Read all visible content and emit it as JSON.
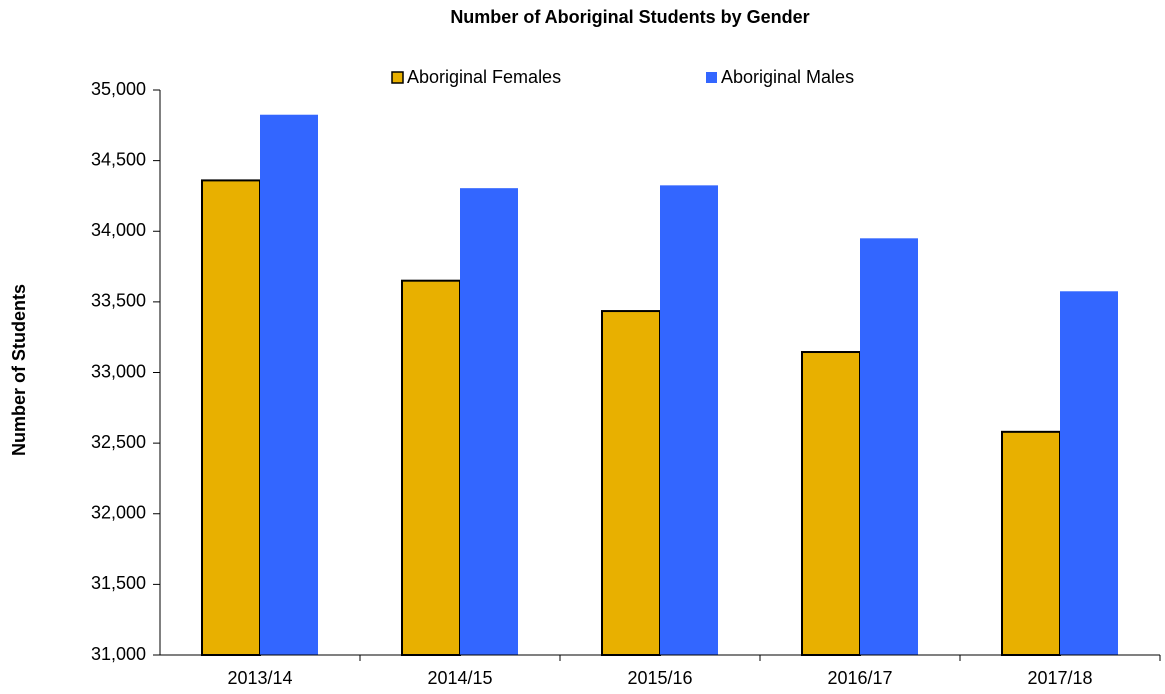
{
  "chart_data": {
    "type": "bar",
    "title": "Number of Aboriginal Students by Gender",
    "y_label": "Number of Students",
    "categories": [
      "2013/14",
      "2014/15",
      "2015/16",
      "2016/17",
      "2017/18"
    ],
    "series": [
      {
        "name": "Aboriginal Females",
        "color": "#e8b000",
        "values": [
          34360,
          33650,
          33435,
          33145,
          32580
        ]
      },
      {
        "name": "Aboriginal Males",
        "color": "#3366ff",
        "values": [
          34825,
          34305,
          34325,
          33950,
          33575
        ]
      }
    ],
    "ylim": [
      31000,
      35000
    ],
    "yticks": [
      {
        "value": 31000,
        "label": "31,000"
      },
      {
        "value": 31500,
        "label": "31,500"
      },
      {
        "value": 32000,
        "label": "32,000"
      },
      {
        "value": 32500,
        "label": "32,500"
      },
      {
        "value": 33000,
        "label": "33,000"
      },
      {
        "value": 33500,
        "label": "33,500"
      },
      {
        "value": 34000,
        "label": "34,000"
      },
      {
        "value": 34500,
        "label": "34,500"
      },
      {
        "value": 35000,
        "label": "35,000"
      }
    ],
    "grid": false,
    "legend": "top"
  }
}
